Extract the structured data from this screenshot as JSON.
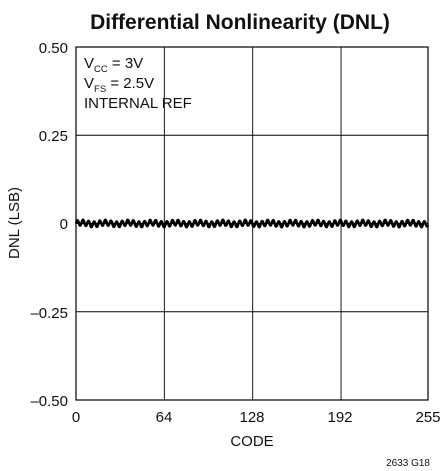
{
  "chart_data": {
    "type": "line",
    "title": "Differential Nonlinearity (DNL)",
    "xlabel": "CODE",
    "ylabel": "DNL (LSB)",
    "xlim": [
      0,
      255
    ],
    "ylim": [
      -0.5,
      0.5
    ],
    "x_ticks": [
      0,
      64,
      128,
      192,
      255
    ],
    "x_tick_labels": [
      "0",
      "64",
      "128",
      "192",
      "255"
    ],
    "y_ticks": [
      0.5,
      0.25,
      0,
      -0.25,
      -0.5
    ],
    "y_tick_labels": [
      "0.50",
      "0.25",
      "0",
      "–0.25",
      "–0.50"
    ],
    "grid": true,
    "conditions": {
      "vcc": {
        "base": "V",
        "sub": "CC",
        "rest": " = 3V"
      },
      "vfs": {
        "base": "V",
        "sub": "FS",
        "rest": " = 2.5V"
      },
      "ref": "INTERNAL REF"
    },
    "series": [
      {
        "amplitude_lsb": 0.008,
        "trend": "DNL stays within about ±0.01 LSB across all codes 0–255 (oscillating near 0)",
        "color": "#000000"
      }
    ],
    "figure_id": "2633 G18"
  }
}
